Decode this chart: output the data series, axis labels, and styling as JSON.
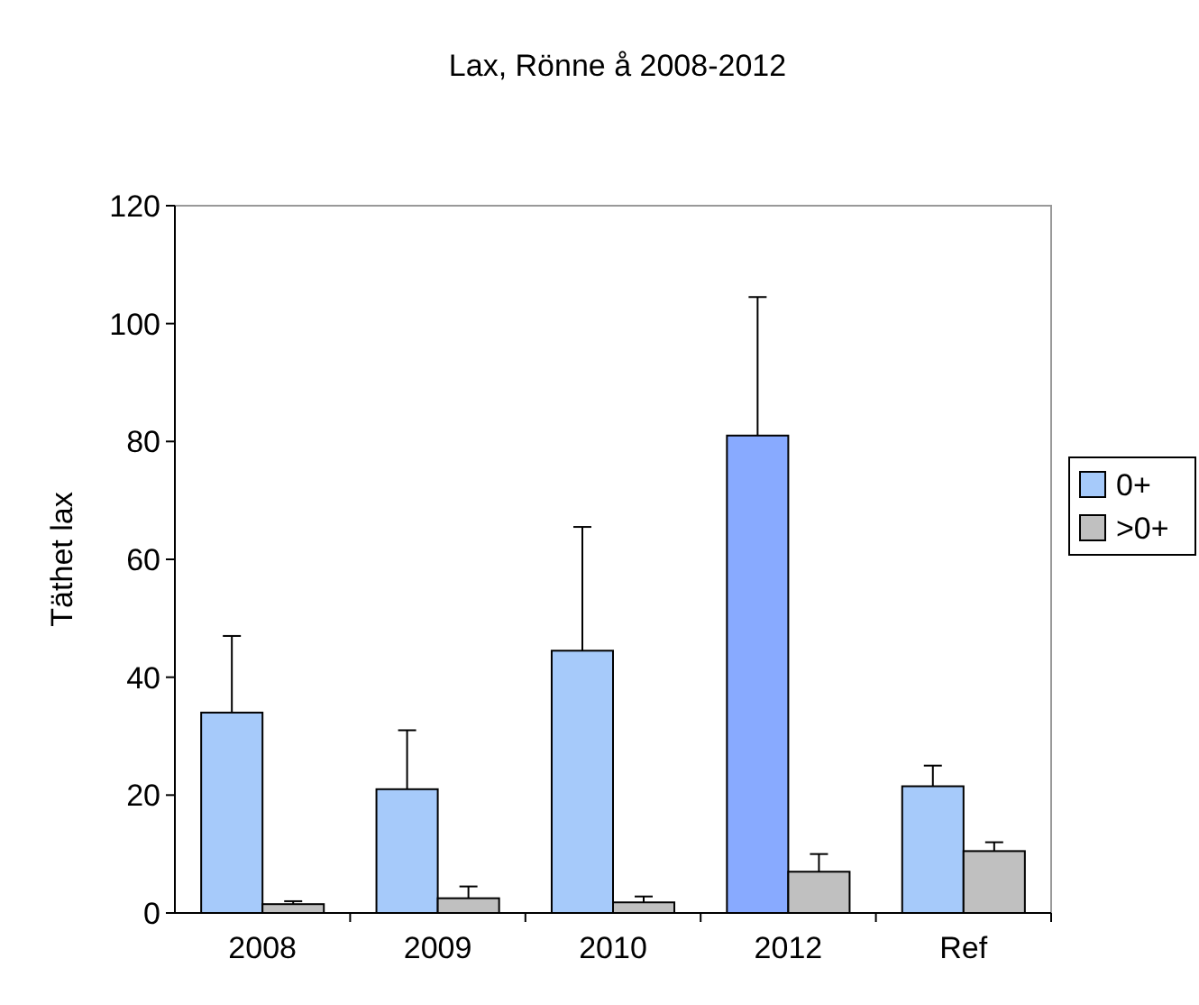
{
  "chart_data": {
    "type": "bar",
    "title": "Lax, Rönne å 2008-2012",
    "ylabel": "Täthet lax",
    "categories": [
      "2008",
      "2009",
      "2010",
      "2012",
      "Ref"
    ],
    "series": [
      {
        "name": "0+",
        "color": "#a6cafa",
        "colors": [
          "#a6cafa",
          "#a6cafa",
          "#a6cafa",
          "#88aaff",
          "#a6cafa"
        ],
        "values": [
          34,
          21,
          44.5,
          81,
          21.5
        ],
        "errors": [
          [
            34,
            47
          ],
          [
            21,
            31
          ],
          [
            44.5,
            65.5
          ],
          [
            81,
            104.5
          ],
          [
            21.5,
            25
          ]
        ]
      },
      {
        "name": ">0+",
        "color": "#c0c0c0",
        "values": [
          1.5,
          2.5,
          1.8,
          7,
          10.5
        ],
        "errors": [
          [
            1.5,
            2
          ],
          [
            2.5,
            4.5
          ],
          [
            1.8,
            2.8
          ],
          [
            7,
            10
          ],
          [
            10.5,
            12
          ]
        ]
      }
    ],
    "ylim": [
      0,
      120
    ],
    "yticks": [
      0,
      20,
      40,
      60,
      80,
      100,
      120
    ],
    "grid": false,
    "legend": "right"
  }
}
